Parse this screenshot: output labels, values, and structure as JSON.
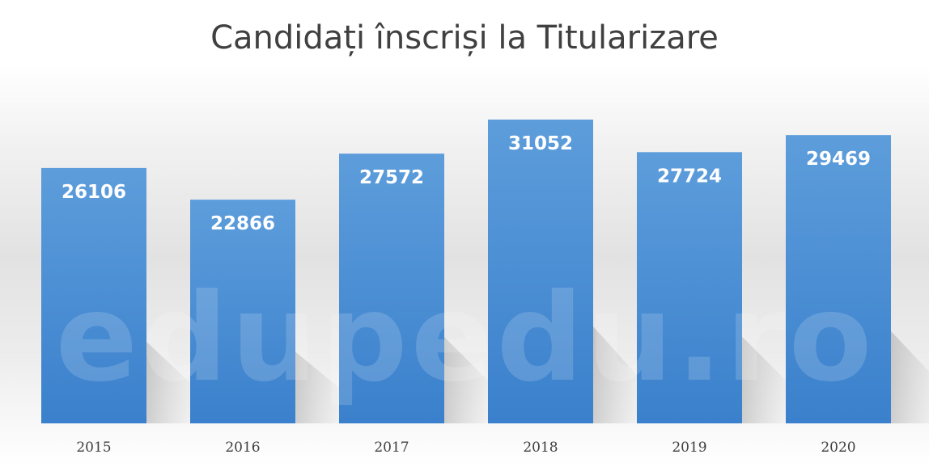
{
  "chart_data": {
    "type": "bar",
    "title": "Candidați înscriși la Titularizare",
    "categories": [
      "2015",
      "2016",
      "2017",
      "2018",
      "2019",
      "2020"
    ],
    "values": [
      26106,
      22866,
      27572,
      31052,
      27724,
      29469
    ],
    "xlabel": "",
    "ylabel": "",
    "ylim": [
      0,
      31052
    ],
    "grid": false,
    "legend": "none",
    "data_labels": "inside-top",
    "bar_color": "#4a8fd4",
    "bar_color_top": "#5d9ddb",
    "bar_color_bottom": "#3a80cc",
    "label_color": "#ffffff",
    "watermark": "edupedu.ro"
  }
}
